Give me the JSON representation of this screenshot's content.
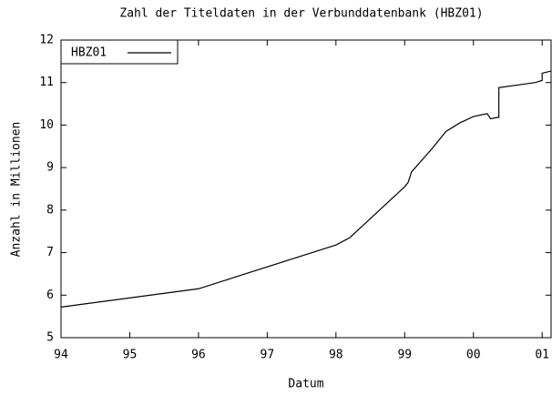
{
  "chart_data": {
    "type": "line",
    "title": "Zahl der Titeldaten in der Verbunddatenbank (HBZ01)",
    "xlabel": "Datum",
    "ylabel": "Anzahl in Millionen",
    "x": [
      94,
      96,
      98,
      98.2,
      98.6,
      99,
      99.05,
      99.1,
      99.4,
      99.6,
      99.8,
      100,
      100.2,
      100.25,
      100.35,
      100.37,
      100.37,
      100.9,
      101,
      101,
      101.13
    ],
    "series": [
      {
        "name": "HBZ01",
        "color": "#000000",
        "values": [
          5.72,
          6.15,
          7.18,
          7.35,
          7.95,
          8.55,
          8.65,
          8.9,
          9.45,
          9.85,
          10.05,
          10.2,
          10.27,
          10.15,
          10.18,
          10.18,
          10.88,
          11.0,
          11.05,
          11.22,
          11.27
        ]
      }
    ],
    "xlim": [
      94,
      101.13
    ],
    "xticks": [
      94,
      95,
      96,
      97,
      98,
      99,
      {
        "value": 100,
        "label": "00"
      },
      {
        "value": 101,
        "label": "01"
      }
    ],
    "ylim": [
      5,
      12
    ],
    "yticks": [
      5,
      6,
      7,
      8,
      9,
      10,
      11,
      12
    ],
    "legend": "upper left"
  }
}
